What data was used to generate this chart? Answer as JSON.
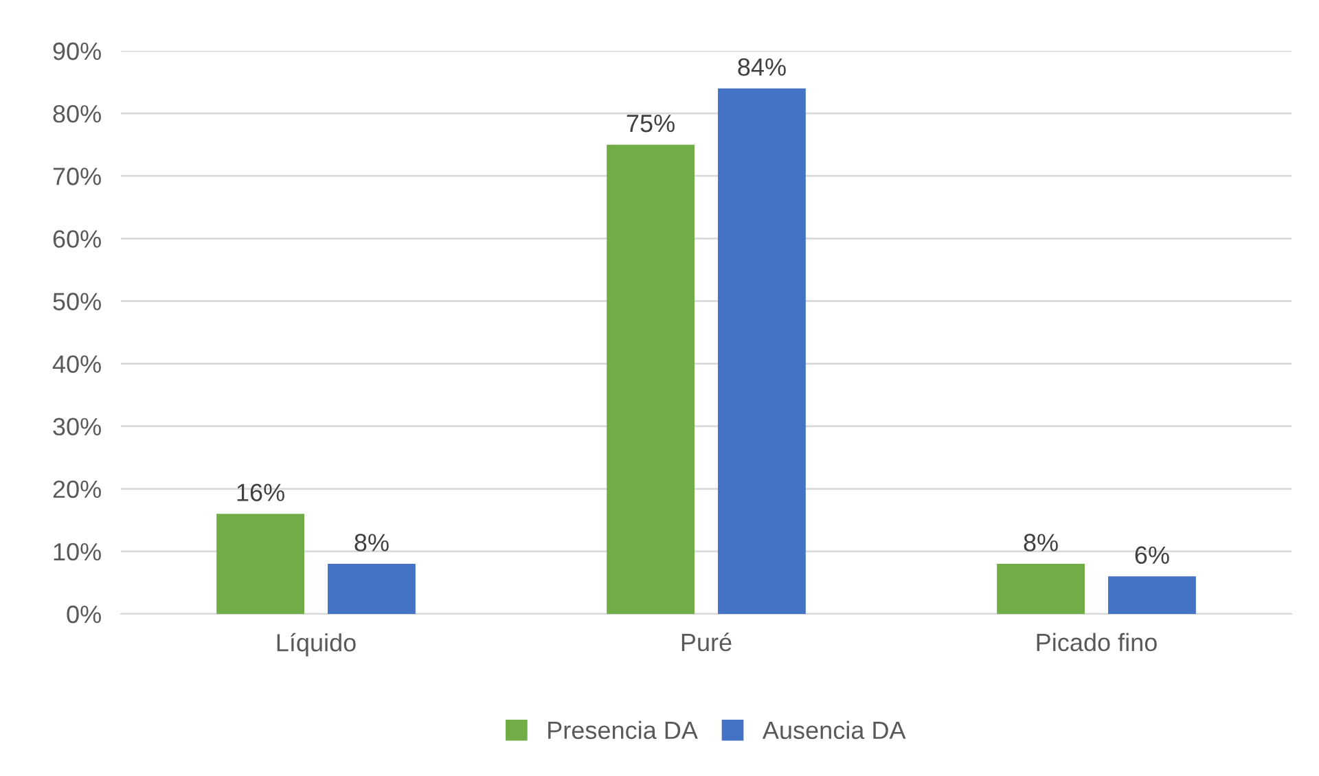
{
  "chart_data": {
    "type": "bar",
    "categories": [
      "Líquido",
      "Puré",
      "Picado fino"
    ],
    "series": [
      {
        "name": "Presencia DA",
        "color": "#70ad47",
        "values": [
          16,
          75,
          8
        ],
        "value_labels": [
          "16%",
          "75%",
          "8%"
        ]
      },
      {
        "name": "Ausencia DA",
        "color": "#4472c4",
        "values": [
          8,
          84,
          6
        ],
        "value_labels": [
          "8%",
          "84%",
          "6%"
        ]
      }
    ],
    "ylim": [
      0,
      90
    ],
    "yticks": [
      {
        "value": 0,
        "label": "0%"
      },
      {
        "value": 10,
        "label": "10%"
      },
      {
        "value": 20,
        "label": "20%"
      },
      {
        "value": 30,
        "label": "30%"
      },
      {
        "value": 40,
        "label": "40%"
      },
      {
        "value": 50,
        "label": "50%"
      },
      {
        "value": 60,
        "label": "60%"
      },
      {
        "value": 70,
        "label": "70%"
      },
      {
        "value": 80,
        "label": "80%"
      },
      {
        "value": 90,
        "label": "90%"
      }
    ],
    "grid": "y",
    "legend": "bottom"
  }
}
